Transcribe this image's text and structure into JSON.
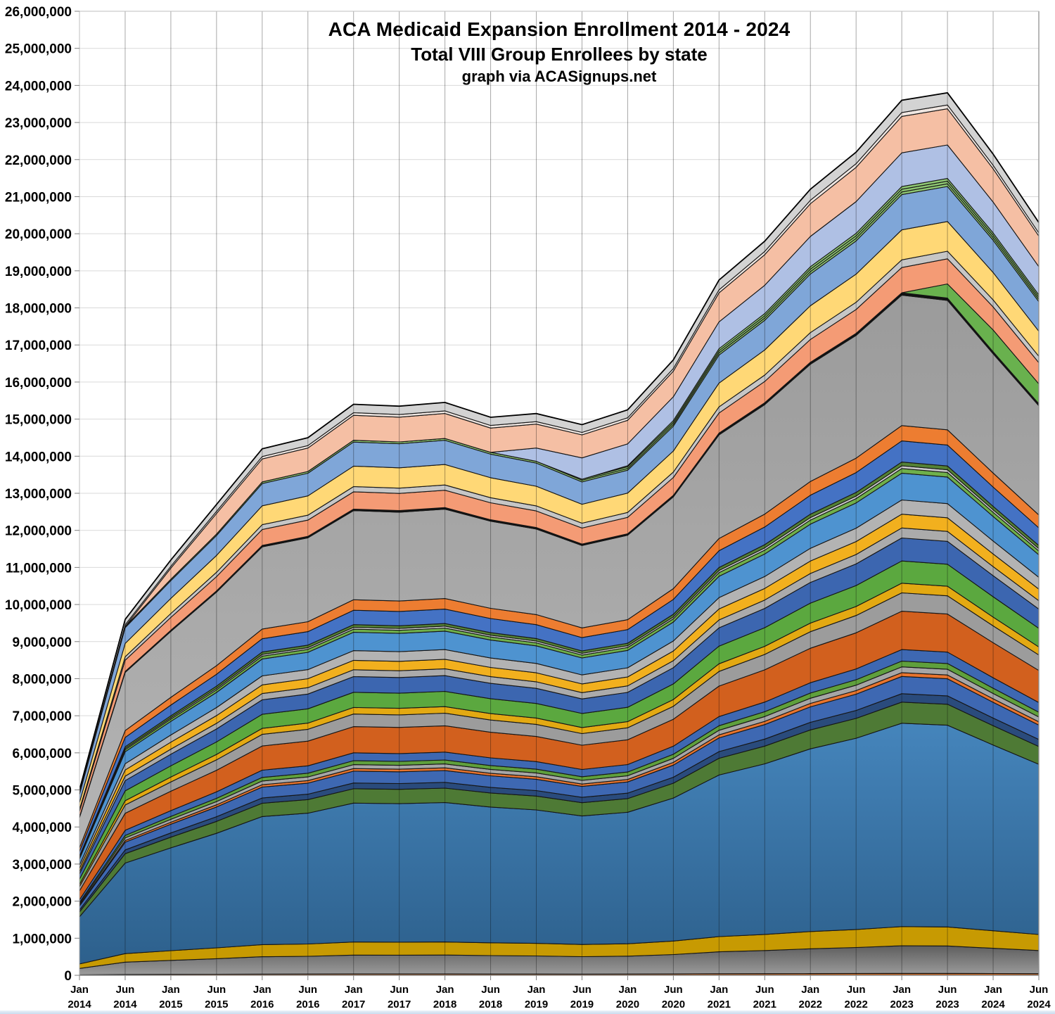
{
  "title": {
    "line1": "ACA Medicaid Expansion Enrollment 2014 - 2024",
    "line2": "Total VIII Group Enrollees by state",
    "line3": "graph via ACASignups.net"
  },
  "chart_data": {
    "type": "area",
    "stacked": true,
    "grid": true,
    "legend_position": "none",
    "x_labels": [
      [
        "Jan",
        "2014"
      ],
      [
        "Jun",
        "2014"
      ],
      [
        "Jan",
        "2015"
      ],
      [
        "Jun",
        "2015"
      ],
      [
        "Jan",
        "2016"
      ],
      [
        "Jun",
        "2016"
      ],
      [
        "Jan",
        "2017"
      ],
      [
        "Jun",
        "2017"
      ],
      [
        "Jan",
        "2018"
      ],
      [
        "Jun",
        "2018"
      ],
      [
        "Jan",
        "2019"
      ],
      [
        "Jun",
        "2019"
      ],
      [
        "Jan",
        "2020"
      ],
      [
        "Jun",
        "2020"
      ],
      [
        "Jan",
        "2021"
      ],
      [
        "Jun",
        "2021"
      ],
      [
        "Jan",
        "2022"
      ],
      [
        "Jun",
        "2022"
      ],
      [
        "Jan",
        "2023"
      ],
      [
        "Jun",
        "2023"
      ],
      [
        "Jan",
        "2024"
      ],
      [
        "Jun",
        "2024"
      ]
    ],
    "y_axis": {
      "min": 0,
      "max": 26000000,
      "step": 1000000,
      "tick_labels": [
        "0",
        "1,000,000",
        "2,000,000",
        "3,000,000",
        "4,000,000",
        "5,000,000",
        "6,000,000",
        "7,000,000",
        "8,000,000",
        "9,000,000",
        "10,000,000",
        "11,000,000",
        "12,000,000",
        "13,000,000",
        "14,000,000",
        "15,000,000",
        "16,000,000",
        "17,000,000",
        "18,000,000",
        "19,000,000",
        "20,000,000",
        "21,000,000",
        "22,000,000",
        "23,000,000",
        "24,000,000",
        "25,000,000",
        "26,000,000"
      ]
    },
    "total_enrollment_millions": [
      5.0,
      9.6,
      11.2,
      12.7,
      14.2,
      14.5,
      15.4,
      15.35,
      15.45,
      15.05,
      15.15,
      14.85,
      15.25,
      16.6,
      18.75,
      19.8,
      21.2,
      22.2,
      23.6,
      23.8,
      22.15,
      20.3
    ],
    "series": [
      {
        "name": "band-01-rust-sliver",
        "color": "#B5540F",
        "weight": 0.05,
        "start": 0
      },
      {
        "name": "band-02-gray-base",
        "gradient": [
          "#5E5E5E",
          "#9B9B9B"
        ],
        "weight": 0.72,
        "start": 0
      },
      {
        "name": "band-03-dark-gold",
        "color": "#C79A02",
        "weight": 0.5,
        "start": 0
      },
      {
        "name": "band-04-big-blue",
        "gradient": [
          "#4585BC",
          "#2D608C"
        ],
        "weight": 5.3,
        "start": 0
      },
      {
        "name": "band-05-dark-green",
        "color": "#4E7A35",
        "weight": 0.55,
        "start": 0
      },
      {
        "name": "band-06-navy",
        "color": "#2A4B7C",
        "weight": 0.22,
        "start": 0
      },
      {
        "name": "band-07-royal-a",
        "color": "#3E68B2",
        "weight": 0.45,
        "start": 0
      },
      {
        "name": "band-08-orange-a",
        "color": "#E8742E",
        "weight": 0.1,
        "start": 0
      },
      {
        "name": "band-09-gray-a",
        "color": "#A6A6A6",
        "weight": 0.15,
        "start": 0
      },
      {
        "name": "band-10-green-a",
        "color": "#5FA03C",
        "weight": 0.15,
        "start": 0
      },
      {
        "name": "band-11-royal-b",
        "color": "#3E68B2",
        "weight": 0.3,
        "start": 0
      },
      {
        "name": "band-12-rust-big",
        "color": "#D2601E",
        "weight": 1.0,
        "start": 0
      },
      {
        "name": "band-13-gray-b",
        "color": "#9C9C9C",
        "weight": 0.48,
        "start": 0
      },
      {
        "name": "band-14-gold-thin",
        "color": "#E3A912",
        "weight": 0.25,
        "start": 0
      },
      {
        "name": "band-15-green-b",
        "color": "#5BA83F",
        "weight": 0.58,
        "start": 0
      },
      {
        "name": "band-16-royal-c",
        "color": "#3C66B0",
        "weight": 0.6,
        "start": 0
      },
      {
        "name": "band-17-gray-c",
        "color": "#ABABAB",
        "weight": 0.26,
        "start": 0
      },
      {
        "name": "band-18-yellow",
        "color": "#F2B01E",
        "weight": 0.36,
        "start": 0
      },
      {
        "name": "band-19-gray-d",
        "color": "#B3B3B3",
        "weight": 0.37,
        "start": 0
      },
      {
        "name": "band-20-sky-blue",
        "color": "#4E93D0",
        "weight": 0.7,
        "start": 0
      },
      {
        "name": "band-21-green-c",
        "color": "#6FB04B",
        "weight": 0.12,
        "start": 0
      },
      {
        "name": "band-22-gray-e",
        "color": "#C9C9C9",
        "weight": 0.07,
        "start": 0
      },
      {
        "name": "band-23-green-d",
        "color": "#548235",
        "weight": 0.1,
        "start": 0
      },
      {
        "name": "band-24-royal-d",
        "color": "#4472C4",
        "weight": 0.55,
        "start": 0
      },
      {
        "name": "band-25-orange-b",
        "color": "#ED7D31",
        "weight": 0.4,
        "start": 0
      },
      {
        "name": "band-26-big-gray",
        "gradient": [
          "#9B9B9B",
          "#B4B4B4"
        ],
        "weight": 3.4,
        "start": 0
      },
      {
        "name": "band-27-black-line",
        "color": "#111111",
        "weight": 0.06,
        "start": 0
      },
      {
        "name": "band-28-green-late",
        "color": "#69B14E",
        "weight": 0.62,
        "start": 19
      },
      {
        "name": "band-29-salmon",
        "color": "#F49B75",
        "weight": 0.66,
        "start": 0
      },
      {
        "name": "band-30-gray-f",
        "color": "#C6C6C6",
        "weight": 0.2,
        "start": 0
      },
      {
        "name": "band-31-light-gold",
        "color": "#FFD876",
        "weight": 0.78,
        "start": 0
      },
      {
        "name": "band-32-med-blue",
        "color": "#7FA6D8",
        "weight": 0.92,
        "start": 0
      },
      {
        "name": "band-33-green-l1",
        "color": "#8FC873",
        "weight": 0.07,
        "start": 0
      },
      {
        "name": "band-34-green-l2",
        "color": "#8FC873",
        "weight": 0.07,
        "start": 11
      },
      {
        "name": "band-35-green-l3",
        "color": "#8FC873",
        "weight": 0.07,
        "start": 12
      },
      {
        "name": "band-36-lavender",
        "color": "#AFC0E4",
        "weight": 0.88,
        "start": 10
      },
      {
        "name": "band-37-salmon-pink",
        "color": "#F5BFA4",
        "weight": 0.95,
        "start": 2
      },
      {
        "name": "band-38-pale-sliver",
        "color": "#EFE6E1",
        "weight": 0.1,
        "start": 0
      },
      {
        "name": "band-39-gray-cap",
        "color": "#D3D3D3",
        "weight": 0.32,
        "start": 0
      }
    ]
  },
  "style_colors": {
    "h_gridline": "#D9D9D9",
    "v_dropline": "#A8A8A8",
    "band_stroke": "#161616",
    "envelope_stroke": "#000000",
    "axis_line": "#2B2B2B",
    "tick_mark": "#7F7F7F",
    "frame": "#BFBFBF",
    "label_text": "#000000"
  }
}
